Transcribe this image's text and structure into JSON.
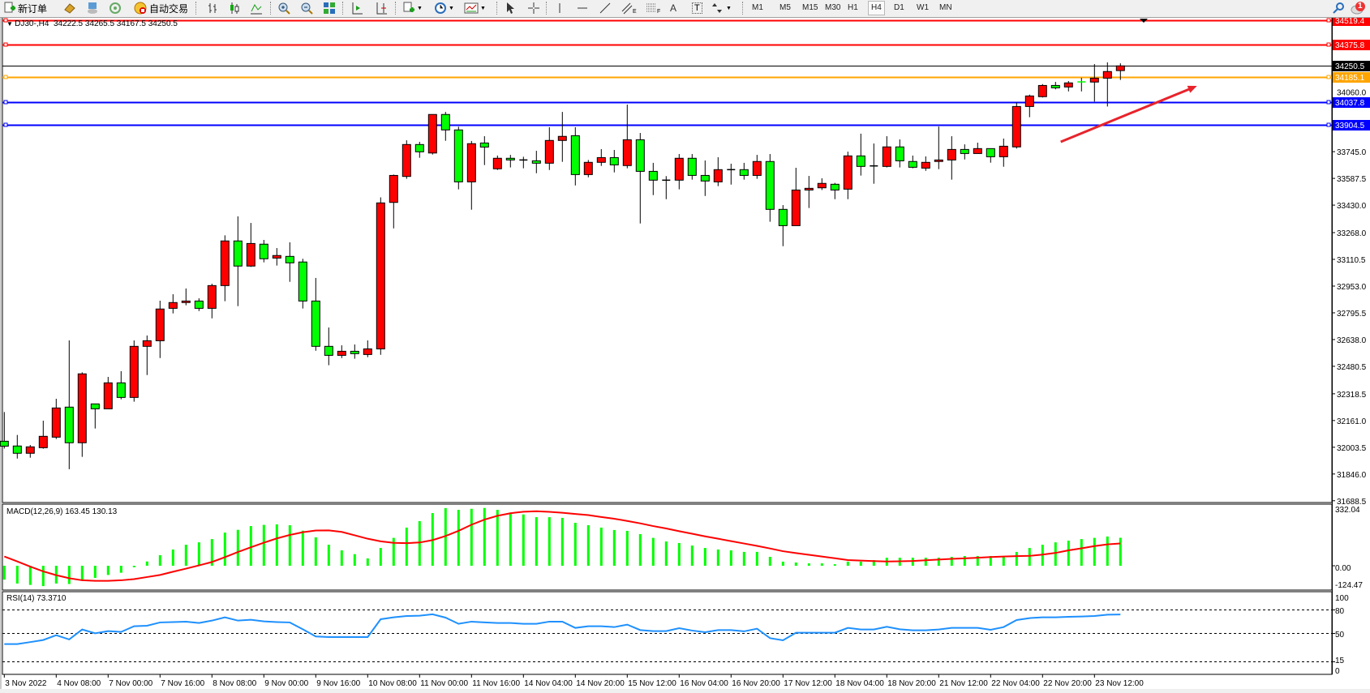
{
  "toolbar": {
    "new_order": "新订单",
    "auto_trading": "自动交易",
    "fibo_e": "E",
    "fibo_f": "F",
    "text_label_tool": "A",
    "text_tool": "T",
    "timeframes": [
      "M1",
      "M5",
      "M15",
      "M30",
      "H1",
      "H4",
      "D1",
      "W1",
      "MN"
    ],
    "active_timeframe": "H4",
    "notification_count": "1"
  },
  "chart": {
    "symbol_period": "DJ30-,H4",
    "ohlc": "34222.5 34265.5 34167.5 34250.5"
  },
  "colors": {
    "bull_candle": "#ff0000",
    "bear_candle": "#00ff00",
    "resistance_line": "#ff0000",
    "orange_line": "#ffa500",
    "support_line": "#0000ff",
    "bid_line": "#000000",
    "macd_histogram": "#00ff00",
    "macd_signal": "#ff0000",
    "rsi_line": "#1e90ff",
    "arrow": "#e8232b"
  },
  "chart_data": {
    "type": "candlestick",
    "candle_format": [
      "open",
      "high",
      "low",
      "close"
    ],
    "candles": [
      [
        32039,
        32211,
        31996,
        32010
      ],
      [
        32011,
        32076,
        31937,
        31968
      ],
      [
        31968,
        32017,
        31942,
        32006
      ],
      [
        32001,
        32160,
        31995,
        32068
      ],
      [
        32063,
        32289,
        32052,
        32235
      ],
      [
        32240,
        32633,
        31874,
        32030
      ],
      [
        32030,
        32445,
        31947,
        32436
      ],
      [
        32259,
        32259,
        32114,
        32230
      ],
      [
        32230,
        32418,
        32230,
        32383
      ],
      [
        32383,
        32452,
        32286,
        32297
      ],
      [
        32297,
        32633,
        32272,
        32598
      ],
      [
        32598,
        32662,
        32429,
        32631
      ],
      [
        32631,
        32867,
        32529,
        32818
      ],
      [
        32822,
        32905,
        32792,
        32856
      ],
      [
        32856,
        32939,
        32840,
        32865
      ],
      [
        32865,
        32881,
        32806,
        32822
      ],
      [
        32822,
        32967,
        32763,
        32956
      ],
      [
        32956,
        33252,
        32864,
        33219
      ],
      [
        33219,
        33364,
        32835,
        33071
      ],
      [
        33071,
        33325,
        33066,
        33204
      ],
      [
        33200,
        33225,
        33093,
        33114
      ],
      [
        33118,
        33177,
        33074,
        33133
      ],
      [
        33128,
        33211,
        32978,
        33090
      ],
      [
        33095,
        33114,
        32821,
        32865
      ],
      [
        32865,
        33001,
        32572,
        32598
      ],
      [
        32598,
        32709,
        32487,
        32545
      ],
      [
        32545,
        32604,
        32529,
        32569
      ],
      [
        32569,
        32609,
        32525,
        32555
      ],
      [
        32550,
        32633,
        32534,
        32583
      ],
      [
        32583,
        33476,
        32548,
        33443
      ],
      [
        33446,
        33610,
        33293,
        33605
      ],
      [
        33599,
        33812,
        33585,
        33787
      ],
      [
        33787,
        33803,
        33709,
        33744
      ],
      [
        33737,
        33964,
        33728,
        33964
      ],
      [
        33964,
        33979,
        33809,
        33873
      ],
      [
        33873,
        33892,
        33523,
        33567
      ],
      [
        33567,
        33808,
        33403,
        33792
      ],
      [
        33796,
        33836,
        33666,
        33772
      ],
      [
        33644,
        33722,
        33637,
        33706
      ],
      [
        33706,
        33726,
        33652,
        33696
      ],
      [
        33696,
        33715,
        33647,
        33696
      ],
      [
        33691,
        33750,
        33618,
        33677
      ],
      [
        33677,
        33889,
        33637,
        33811
      ],
      [
        33811,
        33979,
        33685,
        33835
      ],
      [
        33839,
        33889,
        33546,
        33610
      ],
      [
        33610,
        33696,
        33594,
        33682
      ],
      [
        33682,
        33760,
        33661,
        33710
      ],
      [
        33710,
        33755,
        33623,
        33667
      ],
      [
        33663,
        34022,
        33647,
        33815
      ],
      [
        33815,
        33855,
        33322,
        33629
      ],
      [
        33629,
        33679,
        33489,
        33577
      ],
      [
        33577,
        33601,
        33465,
        33577
      ],
      [
        33577,
        33731,
        33523,
        33706
      ],
      [
        33706,
        33731,
        33580,
        33605
      ],
      [
        33605,
        33693,
        33484,
        33572
      ],
      [
        33567,
        33712,
        33542,
        33639
      ],
      [
        33639,
        33674,
        33551,
        33639
      ],
      [
        33639,
        33679,
        33580,
        33605
      ],
      [
        33605,
        33726,
        33585,
        33687
      ],
      [
        33687,
        33731,
        33332,
        33405
      ],
      [
        33405,
        33430,
        33188,
        33309
      ],
      [
        33309,
        33650,
        33309,
        33519
      ],
      [
        33519,
        33602,
        33413,
        33529
      ],
      [
        33532,
        33588,
        33519,
        33558
      ],
      [
        33553,
        33561,
        33465,
        33519
      ],
      [
        33524,
        33745,
        33465,
        33720
      ],
      [
        33720,
        33851,
        33604,
        33658
      ],
      [
        33661,
        33793,
        33556,
        33661
      ],
      [
        33658,
        33836,
        33652,
        33773
      ],
      [
        33773,
        33817,
        33652,
        33691
      ],
      [
        33687,
        33722,
        33647,
        33653
      ],
      [
        33648,
        33717,
        33632,
        33682
      ],
      [
        33687,
        33893,
        33642,
        33696
      ],
      [
        33696,
        33836,
        33580,
        33758
      ],
      [
        33758,
        33788,
        33699,
        33734
      ],
      [
        33734,
        33798,
        33734,
        33763
      ],
      [
        33763,
        33763,
        33680,
        33715
      ],
      [
        33715,
        33822,
        33656,
        33777
      ],
      [
        33773,
        34034,
        33763,
        34011
      ],
      [
        34011,
        34081,
        33948,
        34073
      ],
      [
        34069,
        34143,
        34064,
        34135
      ],
      [
        34135,
        34156,
        34112,
        34121
      ],
      [
        34126,
        34161,
        34100,
        34150
      ],
      [
        34156,
        34180,
        34100,
        34155
      ],
      [
        34155,
        34261,
        34040,
        34178
      ],
      [
        34178,
        34271,
        34011,
        34217
      ],
      [
        34222.5,
        34265.5,
        34167.5,
        34250.5
      ]
    ],
    "price_axis_ticks": [
      "34060.0",
      "33745.0",
      "33587.5",
      "33430.0",
      "33268.0",
      "33110.5",
      "32953.0",
      "32795.5",
      "32638.0",
      "32480.5",
      "32318.5",
      "32161.0",
      "32003.5",
      "31846.0",
      "31688.5"
    ],
    "price_range": [
      31688.5,
      34519.4
    ],
    "horizontal_levels": [
      {
        "price": 34519.4,
        "label": "34519.4",
        "color": "#ff0000"
      },
      {
        "price": 34375.8,
        "label": "34375.8",
        "color": "#ff0000"
      },
      {
        "price": 34250.5,
        "label": "34250.5",
        "color": "#000000",
        "kind": "bid"
      },
      {
        "price": 34185.1,
        "label": "34185.1",
        "color": "#ffa500"
      },
      {
        "price": 34037.8,
        "label": "34037.8",
        "color": "#0000ff"
      },
      {
        "price": 33904.5,
        "label": "33904.5",
        "color": "#0000ff"
      }
    ],
    "arrow_annotation": {
      "from": {
        "bar": 81.4,
        "price": 33803
      },
      "to": {
        "bar": 91.9,
        "price": 34132
      }
    },
    "time_labels": [
      "3 Nov 2022",
      "4 Nov 08:00",
      "7 Nov 00:00",
      "7 Nov 16:00",
      "8 Nov 08:00",
      "9 Nov 00:00",
      "9 Nov 16:00",
      "10 Nov 08:00",
      "11 Nov 00:00",
      "11 Nov 16:00",
      "14 Nov 04:00",
      "14 Nov 20:00",
      "15 Nov 12:00",
      "16 Nov 04:00",
      "16 Nov 20:00",
      "17 Nov 12:00",
      "18 Nov 04:00",
      "18 Nov 20:00",
      "21 Nov 12:00",
      "22 Nov 04:00",
      "22 Nov 20:00",
      "23 Nov 12:00"
    ],
    "bars_per_time_label": 4,
    "macd": {
      "label": "MACD(12,26,9) 163.45 130.13",
      "axis_labels": [
        "332.04",
        "0.00",
        "-124.47"
      ],
      "range": [
        -124.47,
        332.04
      ],
      "histogram": [
        -81,
        -104,
        -112,
        -119,
        -104,
        -107,
        -81,
        -71,
        -54,
        -41,
        -9,
        25,
        62,
        95,
        123,
        137,
        156,
        194,
        210,
        232,
        239,
        242,
        237,
        205,
        166,
        123,
        90,
        68,
        43,
        104,
        163,
        223,
        261,
        308,
        337,
        327,
        333,
        338,
        327,
        311,
        300,
        284,
        284,
        280,
        251,
        237,
        223,
        209,
        204,
        185,
        163,
        142,
        133,
        118,
        104,
        95,
        90,
        81,
        81,
        52,
        24,
        19,
        14,
        14,
        9,
        24,
        24,
        33,
        47,
        47,
        47,
        47,
        47,
        52,
        57,
        57,
        57,
        57,
        81,
        104,
        123,
        137,
        147,
        156,
        163,
        171,
        163.45
      ],
      "signal": [
        54,
        25,
        -5,
        -33,
        -55,
        -73,
        -85,
        -88,
        -88,
        -85,
        -78,
        -66,
        -54,
        -35,
        -17,
        2,
        22,
        50,
        80,
        108,
        135,
        160,
        180,
        196,
        206,
        207,
        198,
        178,
        158,
        143,
        134,
        132,
        136,
        150,
        174,
        204,
        240,
        270,
        292,
        307,
        316,
        319,
        315,
        310,
        303,
        296,
        285,
        275,
        262,
        248,
        232,
        218,
        202,
        187,
        172,
        158,
        144,
        130,
        116,
        101,
        85,
        74,
        64,
        54,
        44,
        33,
        30,
        27,
        25,
        26,
        28,
        32,
        36,
        40,
        43,
        47,
        51,
        54,
        56,
        58,
        65,
        75,
        90,
        102,
        115,
        125,
        130.13
      ]
    },
    "rsi": {
      "label": "RSI(14) 73.3710",
      "axis_labels": [
        "100",
        "80",
        "50",
        "15",
        "0"
      ],
      "levels": [
        80,
        50,
        15
      ],
      "range": [
        0,
        100
      ],
      "values": [
        36.5,
        36.5,
        39,
        41.6,
        47.6,
        42.3,
        54.7,
        50,
        52.7,
        51.7,
        58.8,
        59.4,
        63.5,
        64,
        64.5,
        62.8,
        65.8,
        69.9,
        65.8,
        66.8,
        64.8,
        64,
        63.5,
        55,
        46,
        45.3,
        45.3,
        45.3,
        45.3,
        67.5,
        69.9,
        71.5,
        71.9,
        73.6,
        69.5,
        61.8,
        64.5,
        63.5,
        62.8,
        62.8,
        61.8,
        61.8,
        64.5,
        64.5,
        56.7,
        58.8,
        58.8,
        57.7,
        60.8,
        54,
        52.7,
        52.7,
        56.4,
        53.4,
        51.3,
        54,
        54,
        52.4,
        55.7,
        43.9,
        41.2,
        50.7,
        50.7,
        50.7,
        50.7,
        56.7,
        54.7,
        54.7,
        58.1,
        55,
        53.7,
        53.7,
        54.7,
        56.7,
        56.7,
        56.7,
        54.4,
        57.7,
        66.5,
        68.9,
        69.9,
        69.9,
        70.5,
        70.9,
        71.5,
        73.2,
        73.371
      ]
    }
  }
}
